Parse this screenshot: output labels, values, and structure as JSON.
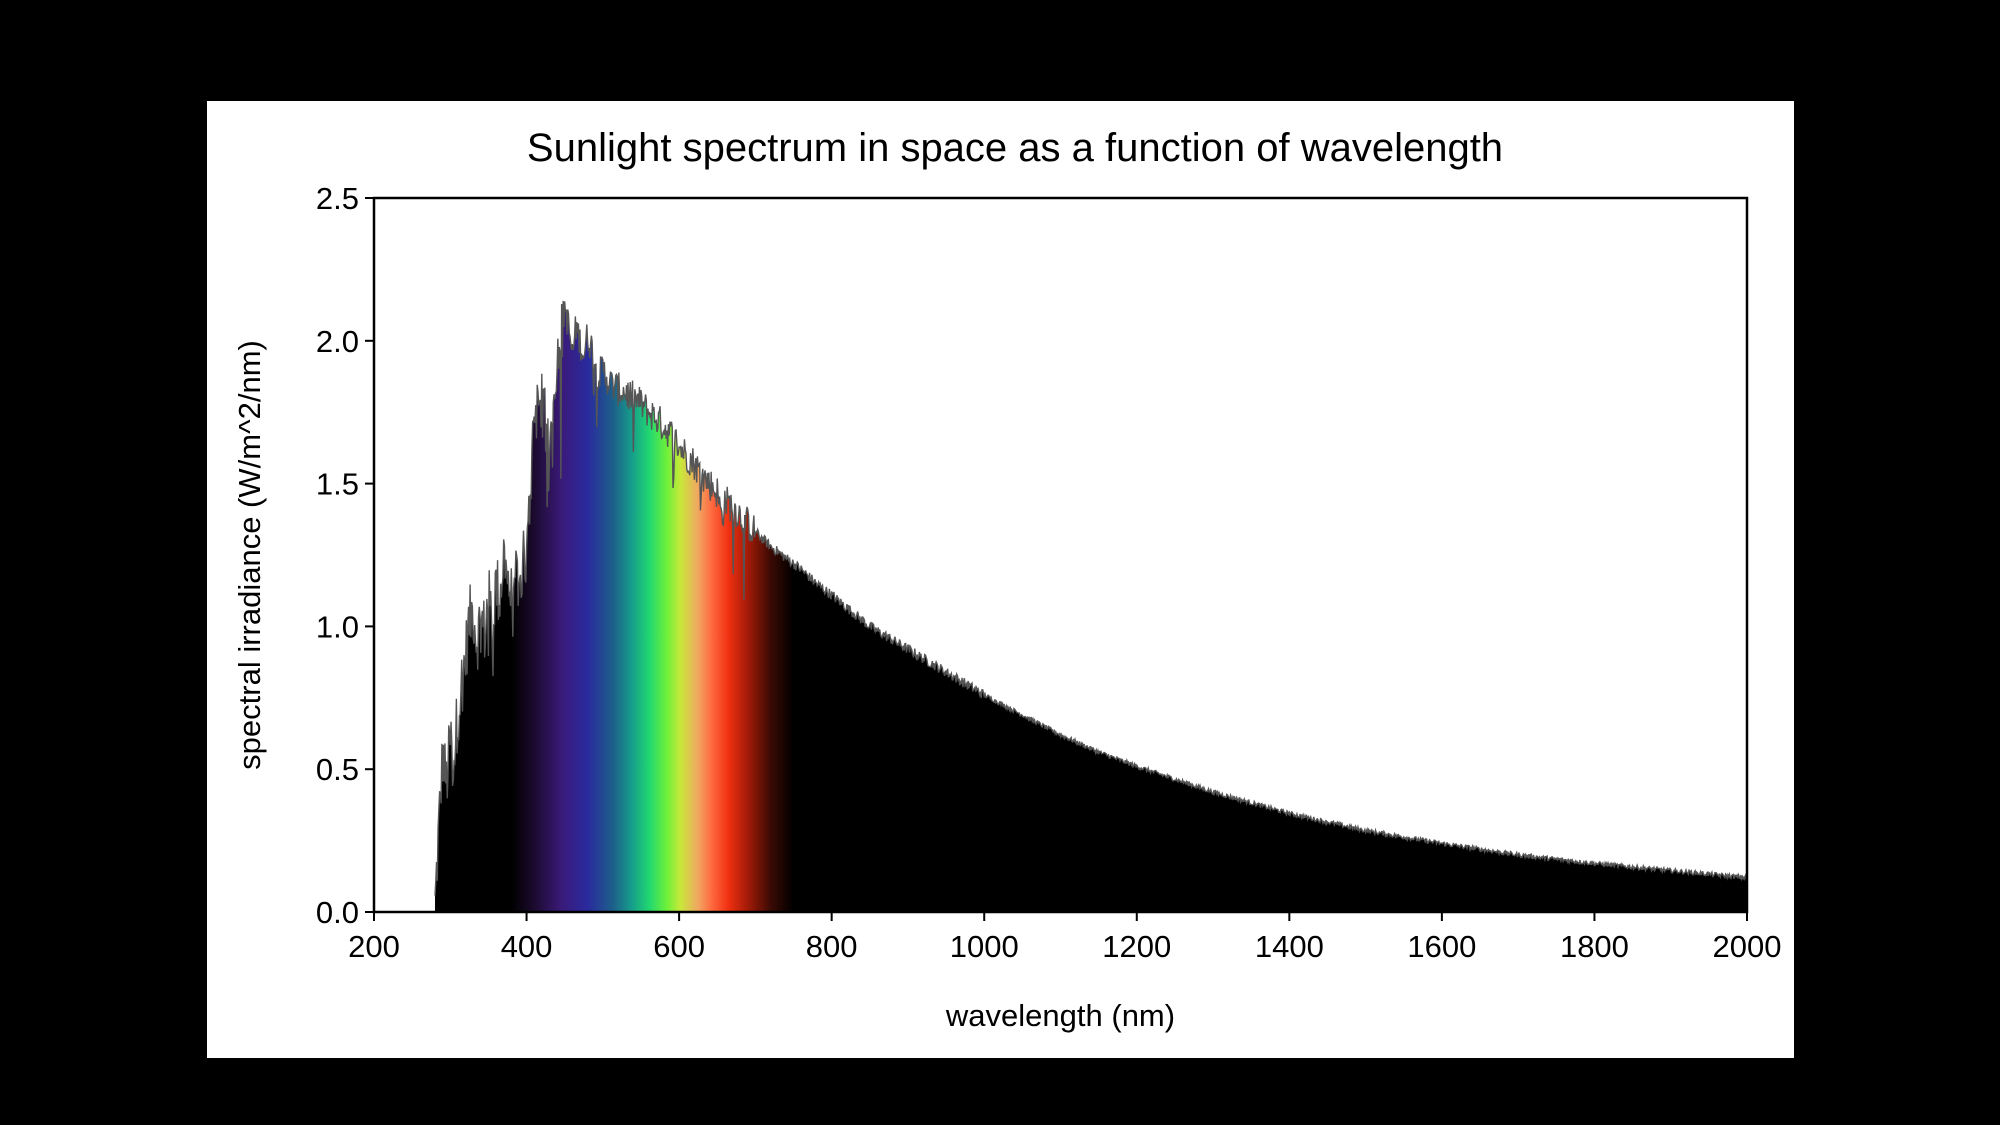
{
  "colors": {
    "background": "#000000",
    "panel": "#ffffff",
    "fill": "#000000",
    "outline": "#555555"
  },
  "chart_data": {
    "type": "area",
    "title": "Sunlight spectrum in space as a function of wavelength",
    "xlabel": "wavelength (nm)",
    "ylabel": "spectral irradiance (W/m^2/nm)",
    "xlim": [
      200,
      2000
    ],
    "ylim": [
      0,
      2.5
    ],
    "x_ticks": [
      200,
      400,
      600,
      800,
      1000,
      1200,
      1400,
      1600,
      1800,
      2000
    ],
    "x_tick_labels": [
      "200",
      "400",
      "600",
      "800",
      "1000",
      "1200",
      "1400",
      "1600",
      "1800",
      "2000"
    ],
    "y_ticks": [
      0,
      0.5,
      1,
      1.5,
      2,
      2.5
    ],
    "y_tick_labels": [
      "0.0",
      "0.5",
      "1.0",
      "1.5",
      "2.0",
      "2.5"
    ],
    "grid": false,
    "legend": "none",
    "fill_style": "visible band 380–750 nm filled with spectrum colors (violet to red), rest filled black",
    "series": [
      {
        "x": [
          280,
          285,
          290,
          295,
          300,
          305,
          310,
          315,
          320,
          325,
          330,
          335,
          340,
          345,
          350,
          355,
          360,
          365,
          370,
          375,
          380,
          385,
          390,
          395,
          400,
          405,
          410,
          415,
          420,
          425,
          430,
          435,
          440,
          445,
          450,
          455,
          460,
          465,
          470,
          475,
          480,
          485,
          490,
          495,
          500,
          510,
          520,
          530,
          540,
          550,
          560,
          570,
          580,
          590,
          600,
          610,
          620,
          630,
          640,
          650,
          656,
          660,
          670,
          680,
          690,
          700,
          720,
          740,
          760,
          780,
          800,
          850,
          900,
          950,
          1000,
          1050,
          1100,
          1150,
          1200,
          1300,
          1400,
          1500,
          1600,
          1700,
          1800,
          1900,
          2000
        ],
        "y": [
          0.02,
          0.3,
          0.55,
          0.45,
          0.6,
          0.55,
          0.7,
          0.8,
          0.9,
          1.02,
          1.06,
          0.95,
          1.03,
          0.98,
          1.1,
          1.02,
          1.15,
          1.1,
          1.25,
          1.18,
          1.1,
          1.2,
          1.05,
          1.3,
          1.2,
          1.5,
          1.75,
          1.78,
          1.8,
          1.7,
          1.55,
          1.85,
          1.95,
          2.0,
          2.12,
          2.05,
          1.95,
          2.05,
          2.0,
          1.95,
          2.02,
          1.98,
          1.92,
          1.88,
          1.9,
          1.85,
          1.83,
          1.82,
          1.8,
          1.78,
          1.75,
          1.73,
          1.7,
          1.67,
          1.63,
          1.6,
          1.57,
          1.53,
          1.5,
          1.47,
          1.38,
          1.44,
          1.42,
          1.39,
          1.36,
          1.33,
          1.28,
          1.24,
          1.2,
          1.15,
          1.11,
          1.0,
          0.92,
          0.84,
          0.76,
          0.69,
          0.62,
          0.56,
          0.51,
          0.42,
          0.345,
          0.285,
          0.24,
          0.2,
          0.17,
          0.145,
          0.12
        ]
      }
    ]
  }
}
